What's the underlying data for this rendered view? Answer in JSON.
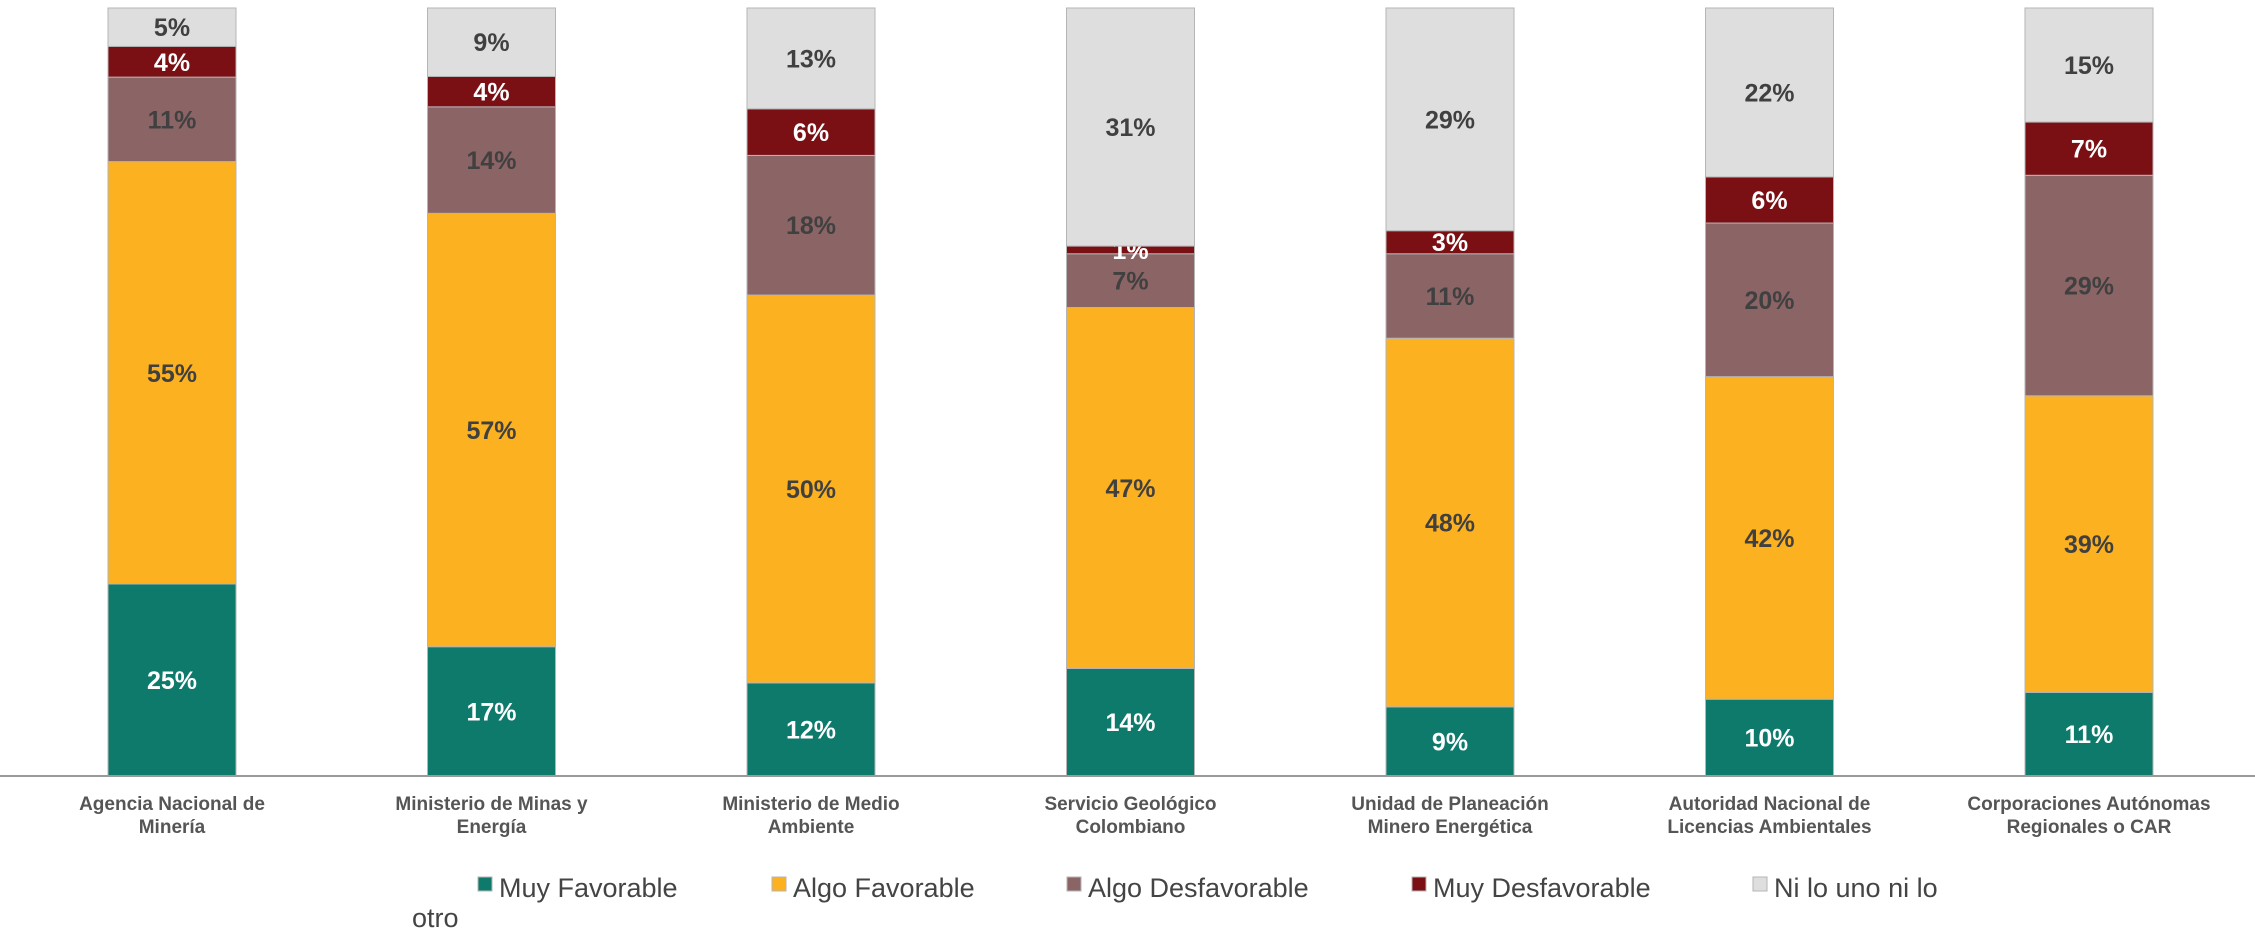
{
  "chart_data": {
    "type": "bar",
    "stacked": true,
    "percent": true,
    "categories": [
      [
        "Agencia Nacional de",
        "Minería"
      ],
      [
        "Ministerio de Minas y",
        "Energía"
      ],
      [
        "Ministerio de Medio",
        "Ambiente"
      ],
      [
        "Servicio Geológico",
        "Colombiano"
      ],
      [
        "Unidad de Planeación",
        "Minero Energética"
      ],
      [
        "Autoridad Nacional de",
        "Licencias Ambientales"
      ],
      [
        "Corporaciones Autónomas",
        "Regionales o CAR"
      ]
    ],
    "series": [
      {
        "name": "Muy Favorable",
        "color": "#0e7a6c",
        "label_color": "#ffffff",
        "values": [
          25,
          17,
          12,
          14,
          9,
          10,
          11
        ]
      },
      {
        "name": "Algo Favorable",
        "color": "#fbb120",
        "label_color": "#404040",
        "values": [
          55,
          57,
          50,
          47,
          48,
          42,
          39
        ]
      },
      {
        "name": "Algo Desfavorable",
        "color": "#8b6466",
        "label_color": "#404040",
        "values": [
          11,
          14,
          18,
          7,
          11,
          20,
          29
        ]
      },
      {
        "name": "Muy Desfavorable",
        "color": "#7a0f14",
        "label_color": "#ffffff",
        "values": [
          4,
          4,
          6,
          1,
          3,
          6,
          7
        ]
      },
      {
        "name": "Ni lo uno ni lo otro",
        "color": "#dedede",
        "label_color": "#404040",
        "values": [
          5,
          9,
          13,
          31,
          29,
          22,
          15
        ]
      }
    ],
    "ylim": [
      0,
      100
    ],
    "legend_position": "bottom",
    "grid": false
  }
}
